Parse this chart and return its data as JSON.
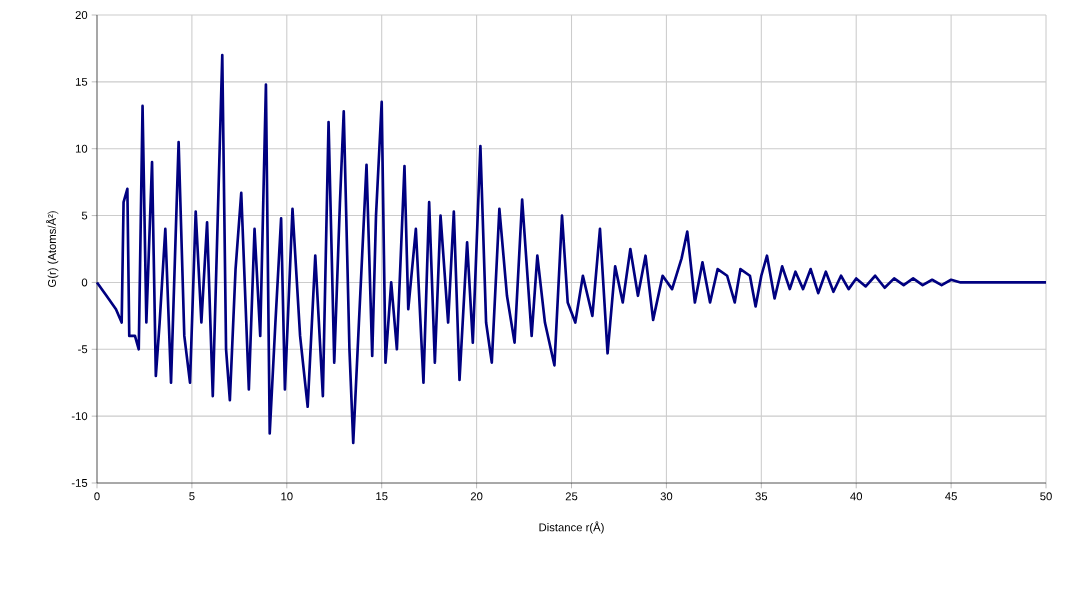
{
  "chart_data": {
    "type": "line",
    "xlabel": "Distance r(Å)",
    "ylabel": "G(r) (Atoms/Å²)",
    "xlim": [
      0,
      50
    ],
    "ylim": [
      -15,
      20
    ],
    "xticks": [
      0,
      5,
      10,
      15,
      20,
      25,
      30,
      35,
      40,
      45,
      50
    ],
    "yticks": [
      -15,
      -10,
      -5,
      0,
      5,
      10,
      15,
      20
    ],
    "grid": true,
    "series": [
      {
        "color": "#000080",
        "x": [
          0,
          0.5,
          1.0,
          1.3,
          1.4,
          1.6,
          1.7,
          2.0,
          2.2,
          2.4,
          2.6,
          2.9,
          3.1,
          3.3,
          3.6,
          3.9,
          4.3,
          4.6,
          4.9,
          5.2,
          5.5,
          5.8,
          6.1,
          6.6,
          6.8,
          7.0,
          7.3,
          7.6,
          8.0,
          8.3,
          8.6,
          8.9,
          9.1,
          9.4,
          9.7,
          9.9,
          10.3,
          10.7,
          11.1,
          11.5,
          11.9,
          12.2,
          12.5,
          12.8,
          13.0,
          13.3,
          13.5,
          13.8,
          14.2,
          14.5,
          14.7,
          15.0,
          15.2,
          15.5,
          15.8,
          16.2,
          16.4,
          16.8,
          17.2,
          17.5,
          17.8,
          18.1,
          18.5,
          18.8,
          19.1,
          19.5,
          19.8,
          20.2,
          20.5,
          20.8,
          21.2,
          21.6,
          22.0,
          22.4,
          22.9,
          23.2,
          23.6,
          24.1,
          24.5,
          24.8,
          25.2,
          25.6,
          26.1,
          26.5,
          26.9,
          27.3,
          27.7,
          28.1,
          28.5,
          28.9,
          29.3,
          29.8,
          30.3,
          30.8,
          31.1,
          31.5,
          31.9,
          32.3,
          32.7,
          33.2,
          33.6,
          33.9,
          34.4,
          34.7,
          35.0,
          35.3,
          35.7,
          36.1,
          36.5,
          36.8,
          37.2,
          37.6,
          38.0,
          38.4,
          38.8,
          39.2,
          39.6,
          40.0,
          40.5,
          41.0,
          41.5,
          42.0,
          42.5,
          43.0,
          43.5,
          44.0,
          44.5,
          45.0,
          45.5,
          46.5,
          50
        ],
        "values": [
          0,
          -1,
          -2,
          -3,
          6,
          7,
          -4,
          -4,
          -5,
          13.2,
          -3,
          9,
          -7,
          -3,
          4,
          -7.5,
          10.5,
          -4,
          -7.5,
          5.3,
          -3,
          4.5,
          -8.5,
          17,
          -5,
          -8.8,
          1,
          6.7,
          -8,
          4,
          -4,
          14.8,
          -11.3,
          -3,
          4.8,
          -8,
          5.5,
          -4,
          -9.3,
          2,
          -8.5,
          12,
          -6,
          6,
          12.8,
          -5,
          -12,
          -3,
          8.8,
          -5.5,
          5,
          13.5,
          -6,
          0,
          -5,
          8.7,
          -2,
          4,
          -7.5,
          6,
          -6,
          5,
          -3,
          5.3,
          -7.3,
          3,
          -4.5,
          10.2,
          -3,
          -6,
          5.5,
          -1,
          -4.5,
          6.2,
          -4,
          2,
          -3,
          -6.2,
          5,
          -1.5,
          -3,
          0.5,
          -2.5,
          4,
          -5.3,
          1.2,
          -1.5,
          2.5,
          -1,
          2,
          -2.8,
          0.5,
          -0.5,
          1.8,
          3.8,
          -1.5,
          1.5,
          -1.5,
          1,
          0.5,
          -1.5,
          1,
          0.5,
          -1.8,
          0.5,
          2,
          -1.2,
          1.2,
          -0.5,
          0.8,
          -0.5,
          1,
          -0.8,
          0.8,
          -0.7,
          0.5,
          -0.5,
          0.3,
          -0.3,
          0.5,
          -0.4,
          0.3,
          -0.2,
          0.3,
          -0.2,
          0.2,
          -0.2,
          0.2,
          0,
          0,
          0
        ]
      }
    ]
  }
}
